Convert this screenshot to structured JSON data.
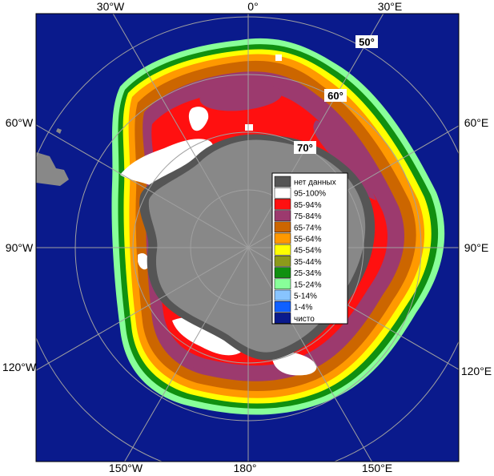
{
  "map": {
    "longitude_labels": {
      "top": [
        "30°W",
        "0°",
        "30°E"
      ],
      "bottom": [
        "150°W",
        "180°",
        "150°E"
      ],
      "left": [
        "60°W",
        "90°W",
        "120°W"
      ],
      "right": [
        "60°E",
        "90°E",
        "120°E"
      ]
    },
    "latitude_labels": [
      "50°",
      "60°",
      "70°"
    ],
    "colors": {
      "ocean": "#0a1a8c",
      "land": "#888888",
      "no_data": "#555555",
      "ice_95_100": "#ffffff",
      "ice_85_94": "#ff1010",
      "ice_75_84": "#9c3a6e",
      "ice_65_74": "#cc6600",
      "ice_55_64": "#ff9900",
      "ice_45_54": "#ffff00",
      "ice_35_44": "#8c9a1a",
      "ice_25_34": "#109010",
      "ice_15_24": "#88ff99",
      "ice_5_14": "#88c4ff",
      "ice_1_4": "#1060ff"
    }
  },
  "legend": {
    "items": [
      {
        "label": "нет данных",
        "color": "#555555"
      },
      {
        "label": "95-100%",
        "color": "#ffffff"
      },
      {
        "label": "85-94%",
        "color": "#ff1010"
      },
      {
        "label": "75-84%",
        "color": "#9c3a6e"
      },
      {
        "label": "65-74%",
        "color": "#cc6600"
      },
      {
        "label": "55-64%",
        "color": "#ff9900"
      },
      {
        "label": "45-54%",
        "color": "#ffff00"
      },
      {
        "label": "35-44%",
        "color": "#8c9a1a"
      },
      {
        "label": "25-34%",
        "color": "#109010"
      },
      {
        "label": "15-24%",
        "color": "#88ff99"
      },
      {
        "label": "5-14%",
        "color": "#88c4ff"
      },
      {
        "label": "1-4%",
        "color": "#1060ff"
      },
      {
        "label": "чисто",
        "color": "#0a1a8c"
      }
    ]
  }
}
